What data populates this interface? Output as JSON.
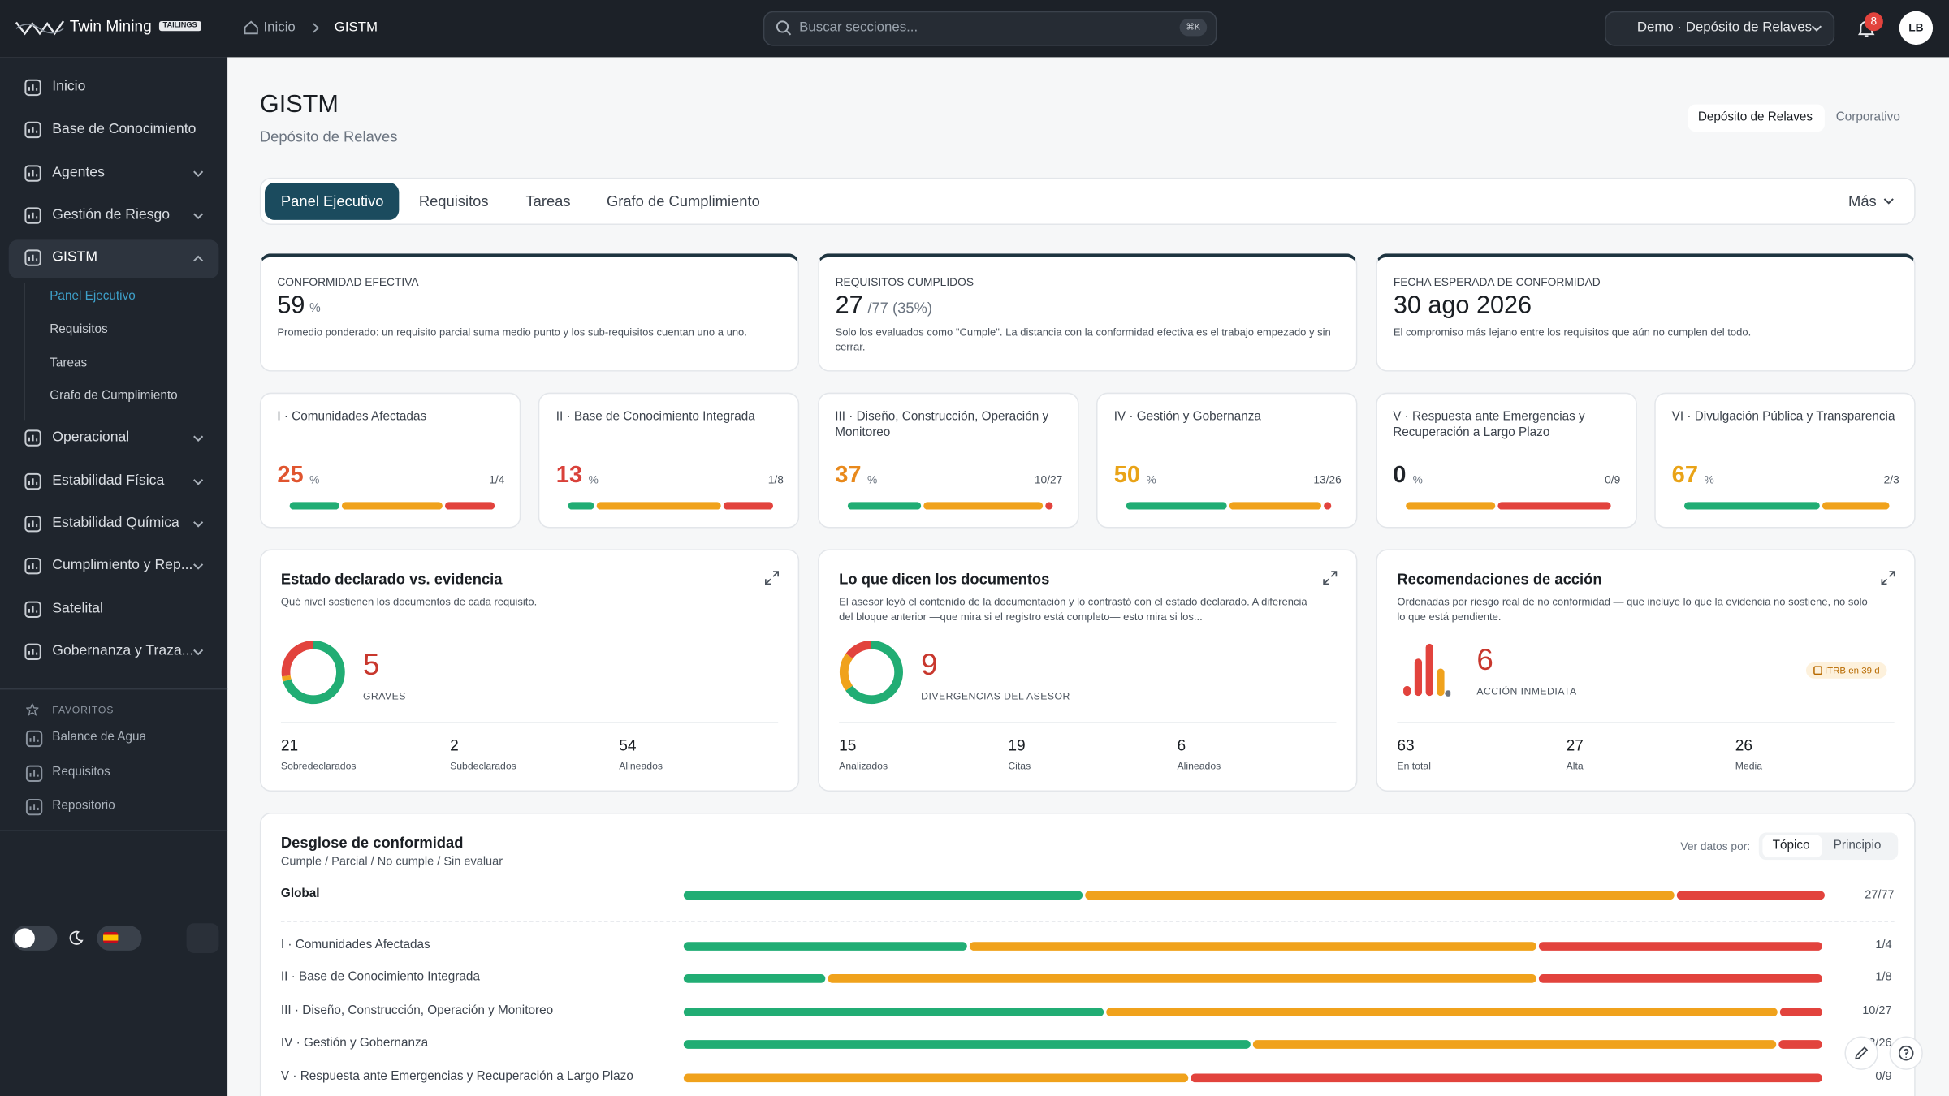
{
  "brand": {
    "name": "Twin Mining",
    "tag": "TAILINGS"
  },
  "breadcrumb": [
    "Inicio",
    "GISTM"
  ],
  "search": {
    "placeholder": "Buscar secciones...",
    "shortcut": "⌘K"
  },
  "site_selector": "Demo · Depósito de Relaves",
  "notifications": 8,
  "user_initials": "LB",
  "sidebar": {
    "items": [
      {
        "label": "Inicio"
      },
      {
        "label": "Base de Conocimiento"
      },
      {
        "label": "Agentes",
        "chevron": "down"
      },
      {
        "label": "Gestión de Riesgo",
        "chevron": "down"
      },
      {
        "label": "GISTM",
        "chevron": "up",
        "active": true,
        "children": [
          "Panel Ejecutivo",
          "Requisitos",
          "Tareas",
          "Grafo de Cumplimiento"
        ]
      },
      {
        "label": "Operacional",
        "chevron": "down"
      },
      {
        "label": "Estabilidad Física",
        "chevron": "down"
      },
      {
        "label": "Estabilidad Química",
        "chevron": "down"
      },
      {
        "label": "Cumplimiento y Rep...",
        "chevron": "down"
      },
      {
        "label": "Satelital"
      },
      {
        "label": "Gobernanza y Traza...",
        "chevron": "down"
      }
    ],
    "favorites_title": "FAVORITOS",
    "favorites": [
      "Balance de Agua",
      "Requisitos",
      "Repositorio"
    ]
  },
  "page": {
    "title": "GISTM",
    "subtitle": "Depósito de Relaves",
    "scope": [
      "Depósito de Relaves",
      "Corporativo"
    ]
  },
  "tabs": [
    "Panel Ejecutivo",
    "Requisitos",
    "Tareas",
    "Grafo de Cumplimiento"
  ],
  "tabs_more": "Más",
  "segment_colors": [
    "#21ad74",
    "#f0a21c",
    "#e2433d"
  ],
  "percent_unit": "%",
  "kpis": [
    {
      "label": "CONFORMIDAD EFECTIVA",
      "value": 59,
      "unit": "%",
      "note": "Promedio ponderado: un requisito parcial suma medio punto y los sub-requisitos cuentan uno a uno."
    },
    {
      "label": "REQUISITOS CUMPLIDOS",
      "value": 27,
      "unit": "/77 (35%)",
      "note": "Solo los evaluados como \"Cumple\". La distancia con la conformidad efectiva es el trabajo empezado y sin cerrar."
    },
    {
      "label": "FECHA ESPERADA DE CONFORMIDAD",
      "value": "30 ago 2026",
      "note": "El compromiso más lejano entre los requisitos que aún no cumplen del todo."
    }
  ],
  "topics": [
    {
      "name": "I · Comunidades Afectadas",
      "percent": 25,
      "count": "1/4",
      "color": "#e0552f",
      "segments": [
        1,
        2,
        1
      ]
    },
    {
      "name": "II · Base de Conocimiento Integrada",
      "percent": 13,
      "count": "1/8",
      "color": "#d9413a",
      "segments": [
        1,
        5,
        2
      ]
    },
    {
      "name": "III · Diseño, Construcción, Operación y Monitoreo",
      "percent": 37,
      "count": "10/27",
      "color": "#e8891c",
      "segments": [
        10,
        16,
        1
      ]
    },
    {
      "name": "IV · Gestión y Gobernanza",
      "percent": 50,
      "count": "13/26",
      "color": "#e9a317",
      "segments": [
        13,
        12,
        1
      ]
    },
    {
      "name": "V · Respuesta ante Emergencias y Recuperación a Largo Plazo",
      "percent": 0,
      "count": "0/9",
      "color": "#1f2328",
      "segments": [
        0,
        4,
        5
      ]
    },
    {
      "name": "VI · Divulgación Pública y Transparencia",
      "percent": 67,
      "count": "2/3",
      "color": "#e9a317",
      "segments": [
        2,
        1,
        0
      ]
    }
  ],
  "panels": [
    {
      "title": "Estado declarado vs. evidencia",
      "description": "Qué nivel sostienen los documentos de cada requisito.",
      "headline": 5,
      "headline_label": "GRAVES",
      "stats": [
        {
          "value": 21,
          "label": "Sobredeclarados"
        },
        {
          "value": 2,
          "label": "Subdeclarados"
        },
        {
          "value": 54,
          "label": "Alineados"
        }
      ]
    },
    {
      "title": "Lo que dicen los documentos",
      "description": "El asesor leyó el contenido de la documentación y lo contrastó con el estado declarado. A diferencia del bloque anterior —que mira si el registro está completo— esto mira si los...",
      "headline": 9,
      "headline_label": "DIVERGENCIAS DEL ASESOR",
      "donut": [
        65,
        20,
        15
      ],
      "stats": [
        {
          "value": 15,
          "label": "Analizados"
        },
        {
          "value": 19,
          "label": "Citas"
        },
        {
          "value": 6,
          "label": "Alineados"
        }
      ]
    },
    {
      "title": "Recomendaciones de acción",
      "description": "Ordenadas por riesgo real de no conformidad — que incluye lo que la evidencia no sostiene, no solo lo que está pendiente.",
      "headline": 6,
      "headline_label": "ACCIÓN INMEDIATA",
      "badge": "ITRB en 39 d",
      "stats": [
        {
          "value": 63,
          "label": "En total"
        },
        {
          "value": 27,
          "label": "Alta"
        },
        {
          "value": 26,
          "label": "Media"
        }
      ]
    }
  ],
  "breakdown": {
    "title": "Desglose de conformidad",
    "subtitle": "Cumple / Parcial / No cumple / Sin evaluar",
    "view_label": "Ver datos por:",
    "view_options": [
      "Tópico",
      "Principio"
    ],
    "global": {
      "label": "Global",
      "count": "27/77",
      "segments": [
        27,
        40,
        10
      ]
    }
  }
}
